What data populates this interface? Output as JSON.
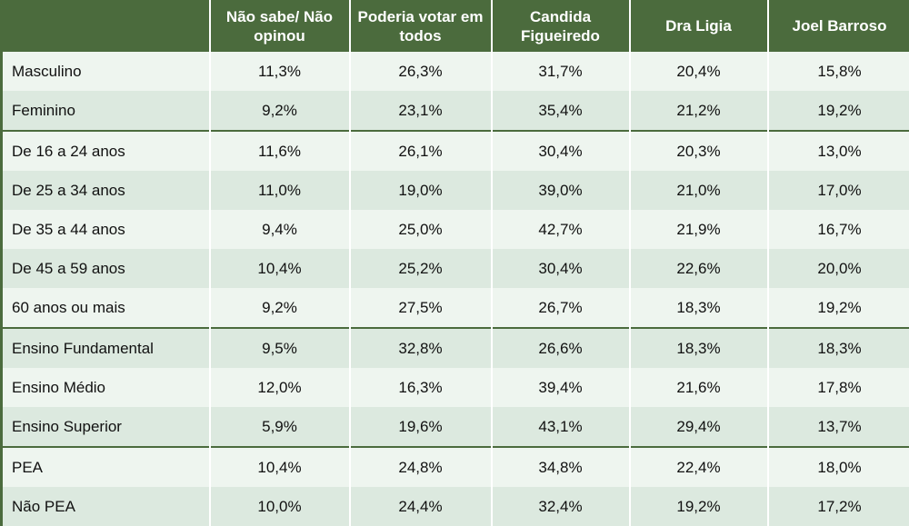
{
  "chart_data": {
    "type": "table",
    "columns": [
      "",
      "Não sabe/ Não opinou",
      "Poderia votar em todos",
      "Candida Figueiredo",
      "Dra Ligia",
      "Joel Barroso"
    ],
    "rows": [
      {
        "label": "Masculino",
        "values": [
          "11,3%",
          "26,3%",
          "31,7%",
          "20,4%",
          "15,8%"
        ]
      },
      {
        "label": "Feminino",
        "values": [
          "9,2%",
          "23,1%",
          "35,4%",
          "21,2%",
          "19,2%"
        ]
      },
      {
        "label": "De 16 a 24 anos",
        "values": [
          "11,6%",
          "26,1%",
          "30,4%",
          "20,3%",
          "13,0%"
        ]
      },
      {
        "label": "De 25 a 34 anos",
        "values": [
          "11,0%",
          "19,0%",
          "39,0%",
          "21,0%",
          "17,0%"
        ]
      },
      {
        "label": "De 35 a 44 anos",
        "values": [
          "9,4%",
          "25,0%",
          "42,7%",
          "21,9%",
          "16,7%"
        ]
      },
      {
        "label": "De 45 a 59 anos",
        "values": [
          "10,4%",
          "25,2%",
          "30,4%",
          "22,6%",
          "20,0%"
        ]
      },
      {
        "label": "60 anos ou mais",
        "values": [
          "9,2%",
          "27,5%",
          "26,7%",
          "18,3%",
          "19,2%"
        ]
      },
      {
        "label": "Ensino Fundamental",
        "values": [
          "9,5%",
          "32,8%",
          "26,6%",
          "18,3%",
          "18,3%"
        ]
      },
      {
        "label": "Ensino Médio",
        "values": [
          "12,0%",
          "16,3%",
          "39,4%",
          "21,6%",
          "17,8%"
        ]
      },
      {
        "label": "Ensino Superior",
        "values": [
          "5,9%",
          "19,6%",
          "43,1%",
          "29,4%",
          "13,7%"
        ]
      },
      {
        "label": "PEA",
        "values": [
          "10,4%",
          "24,8%",
          "34,8%",
          "22,4%",
          "18,0%"
        ]
      },
      {
        "label": "Não PEA",
        "values": [
          "10,0%",
          "24,4%",
          "32,4%",
          "19,2%",
          "17,2%"
        ]
      }
    ],
    "group_starts": [
      2,
      7,
      10
    ],
    "colors": {
      "header": "#4b6b3d",
      "row_light": "#eef5ef",
      "row_dark": "#dce9df"
    }
  }
}
